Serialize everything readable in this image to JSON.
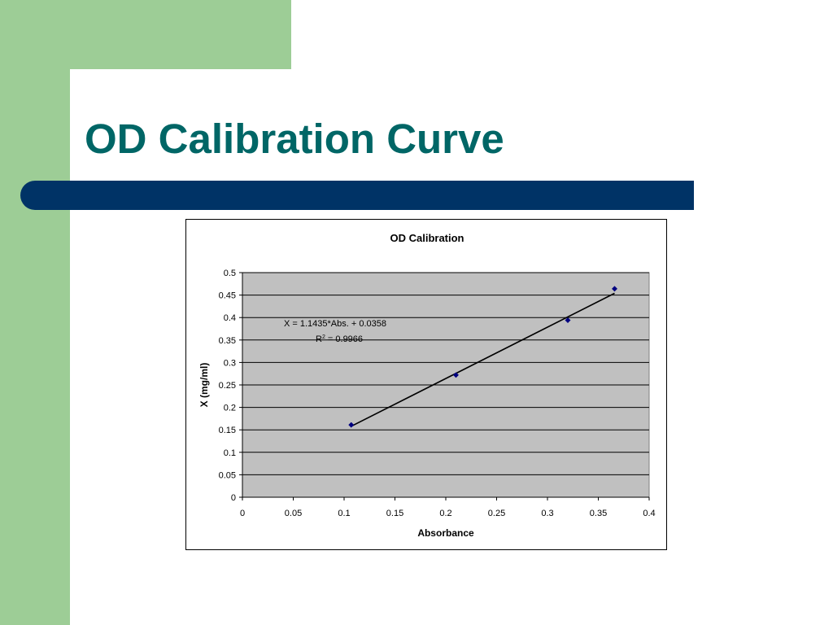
{
  "slide": {
    "title": "OD Calibration Curve",
    "colors": {
      "title": "#006666",
      "accent_green": "#9dcd96",
      "accent_blue": "#003366",
      "plot_area": "#c0c0c0",
      "marker": "#000080"
    }
  },
  "chart_data": {
    "type": "scatter",
    "title": "OD Calibration",
    "xlabel": "Absorbance",
    "ylabel": "X (mg/ml)",
    "xlim": [
      0,
      0.4
    ],
    "ylim": [
      0,
      0.5
    ],
    "x_ticks": [
      "0",
      "0.05",
      "0.1",
      "0.15",
      "0.2",
      "0.25",
      "0.3",
      "0.35",
      "0.4"
    ],
    "y_ticks": [
      "0",
      "0.05",
      "0.1",
      "0.15",
      "0.2",
      "0.25",
      "0.3",
      "0.35",
      "0.4",
      "0.45",
      "0.5"
    ],
    "grid": "horizontal",
    "legend": "none",
    "series": [
      {
        "x": [
          0.107,
          0.21,
          0.32,
          0.366
        ],
        "y": [
          0.161,
          0.272,
          0.394,
          0.464
        ]
      }
    ],
    "trendline": {
      "x": [
        0.107,
        0.366
      ],
      "y": [
        0.158,
        0.454
      ],
      "equation": "X = 1.1435*Abs. + 0.0358",
      "r2_prefix": "R",
      "r2_sup": "2",
      "r2_value": " = 0.9966"
    }
  }
}
